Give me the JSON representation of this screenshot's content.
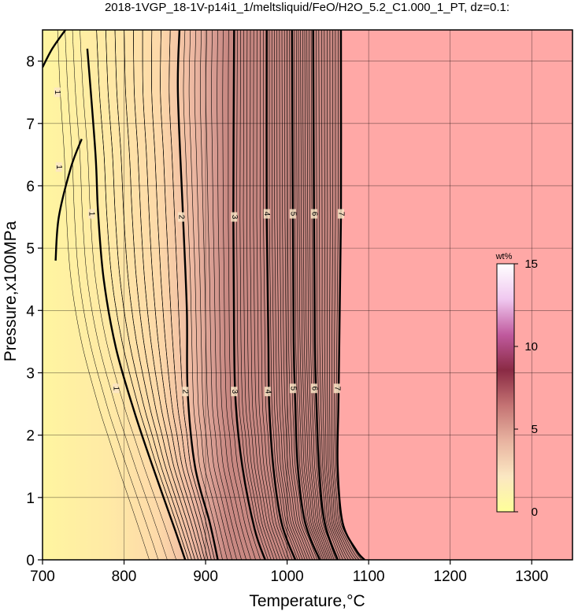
{
  "chart_data": {
    "type": "heatmap",
    "title": "2018-1VGP_18-1V-p14i1_1/meltsliquid/FeO/H2O_5.2_C1.000_1_PT, dz=0.1:",
    "xlabel": "Temperature,°C",
    "ylabel": "Pressure,x100MPa",
    "xlim": [
      700,
      1350
    ],
    "ylim": [
      0,
      8.5
    ],
    "x_ticks": [
      700,
      800,
      900,
      1000,
      1100,
      1200,
      1300
    ],
    "y_ticks": [
      0,
      1,
      2,
      3,
      4,
      5,
      6,
      7,
      8
    ],
    "grid": true,
    "colorbar": {
      "label": "wt%",
      "ticks": [
        0,
        5,
        10,
        15
      ],
      "range": [
        0,
        15
      ],
      "colors": [
        "#ffff99",
        "#fbe7c2",
        "#e8b3a0",
        "#c47373",
        "#8a2a44",
        "#c05a9e",
        "#f0c8f0",
        "#ffffff"
      ]
    },
    "above_liquidus_color": "#ffa8a6",
    "major_contours": [
      {
        "value": 1,
        "label": "1",
        "points": [
          [
            700,
            7.9
          ],
          [
            712,
            8.2
          ],
          [
            728,
            8.5
          ]
        ]
      },
      {
        "value": 1,
        "label": "1",
        "points": [
          [
            748,
            6.75
          ],
          [
            735,
            6.3
          ],
          [
            720,
            5.5
          ],
          [
            716,
            4.8
          ]
        ]
      },
      {
        "value": 1,
        "label": "1",
        "points": [
          [
            755,
            8.2
          ],
          [
            765,
            6.5
          ],
          [
            768,
            5.6
          ],
          [
            775,
            4.5
          ],
          [
            790,
            3.4
          ],
          [
            812,
            2.4
          ],
          [
            835,
            1.5
          ],
          [
            862,
            0.5
          ],
          [
            875,
            0
          ]
        ]
      },
      {
        "value": 2,
        "label": "2",
        "points": [
          [
            868,
            8.5
          ],
          [
            866,
            7.5
          ],
          [
            872,
            5.6
          ],
          [
            877,
            4.0
          ],
          [
            878,
            2.7
          ],
          [
            887,
            1.5
          ],
          [
            905,
            0.6
          ],
          [
            915,
            0
          ]
        ]
      },
      {
        "value": 3,
        "label": "3",
        "points": [
          [
            935,
            8.5
          ],
          [
            934,
            5.5
          ],
          [
            935,
            3.5
          ],
          [
            937,
            2.5
          ],
          [
            945,
            1.5
          ],
          [
            960,
            0.5
          ],
          [
            973,
            0
          ]
        ]
      },
      {
        "value": 4,
        "label": "4",
        "points": [
          [
            975,
            8.5
          ],
          [
            975,
            5.5
          ],
          [
            977,
            3.5
          ],
          [
            978,
            2.5
          ],
          [
            983,
            1.5
          ],
          [
            993,
            0.6
          ],
          [
            1010,
            0
          ]
        ]
      },
      {
        "value": 5,
        "label": "5",
        "points": [
          [
            1006,
            8.5
          ],
          [
            1007,
            5.5
          ],
          [
            1008,
            3.5
          ],
          [
            1010,
            2.5
          ],
          [
            1013,
            1.5
          ],
          [
            1022,
            0.6
          ],
          [
            1040,
            0
          ]
        ]
      },
      {
        "value": 6,
        "label": "6",
        "points": [
          [
            1032,
            8.5
          ],
          [
            1033,
            5.5
          ],
          [
            1034,
            3.5
          ],
          [
            1036,
            2.5
          ],
          [
            1039,
            1.5
          ],
          [
            1046,
            0.6
          ],
          [
            1062,
            0
          ]
        ]
      },
      {
        "value": 7,
        "label": "7",
        "points": [
          [
            1066,
            8.5
          ],
          [
            1066,
            5.5
          ],
          [
            1064,
            3.5
          ],
          [
            1063,
            2.5
          ],
          [
            1062,
            1.5
          ],
          [
            1068,
            0.6
          ],
          [
            1085,
            0.15
          ],
          [
            1095,
            0
          ]
        ]
      }
    ],
    "major_contour_label_positions": [
      {
        "label": "1",
        "x": 718,
        "y": 7.5
      },
      {
        "label": "1",
        "x": 720,
        "y": 6.3
      },
      {
        "label": "1",
        "x": 760,
        "y": 5.55
      },
      {
        "label": "2",
        "x": 870,
        "y": 5.5
      },
      {
        "label": "3",
        "x": 935,
        "y": 5.5
      },
      {
        "label": "4",
        "x": 975,
        "y": 5.55
      },
      {
        "label": "5",
        "x": 1007,
        "y": 5.55
      },
      {
        "label": "6",
        "x": 1033,
        "y": 5.55
      },
      {
        "label": "7",
        "x": 1066,
        "y": 5.55
      },
      {
        "label": "1",
        "x": 790,
        "y": 2.75
      },
      {
        "label": "2",
        "x": 875,
        "y": 2.7
      },
      {
        "label": "3",
        "x": 935,
        "y": 2.7
      },
      {
        "label": "4",
        "x": 976,
        "y": 2.7
      },
      {
        "label": "5",
        "x": 1007,
        "y": 2.75
      },
      {
        "label": "6",
        "x": 1033,
        "y": 2.75
      },
      {
        "label": "7",
        "x": 1061,
        "y": 2.75
      }
    ]
  }
}
